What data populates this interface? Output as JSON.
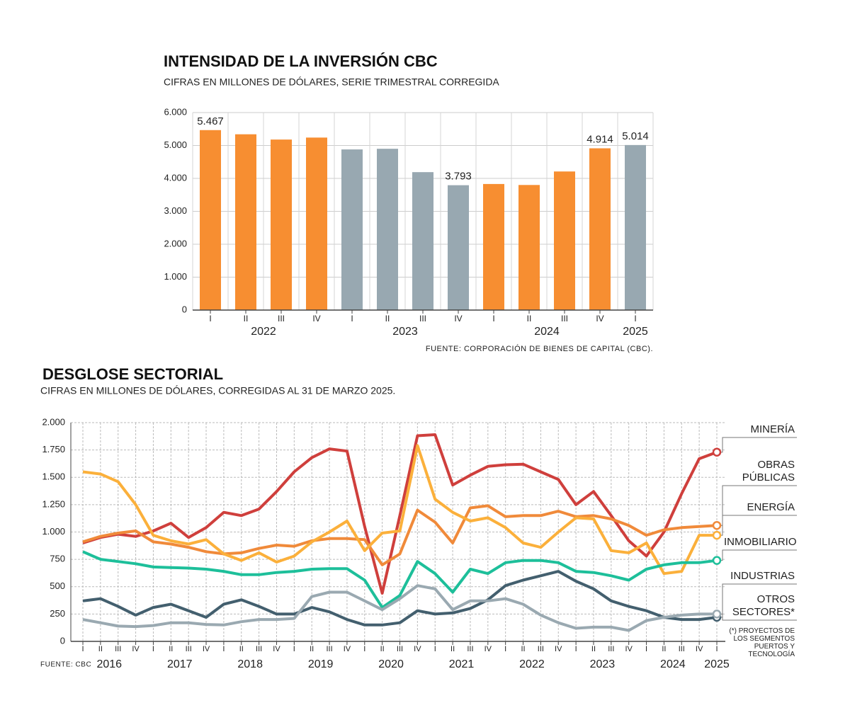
{
  "chart_data": [
    {
      "type": "bar",
      "title": "INTENSIDAD DE LA INVERSIÓN CBC",
      "subtitle": "CIFRAS EN MILLONES DE DÓLARES,  SERIE TRIMESTRAL CORREGIDA",
      "source": "FUENTE: CORPORACIÓN DE BIENES DE CAPITAL (CBC).",
      "categories": [
        "I",
        "II",
        "III",
        "IV",
        "I",
        "II",
        "III",
        "IV",
        "I",
        "II",
        "III",
        "IV",
        "I"
      ],
      "groups": [
        {
          "label": "2022",
          "span": 4
        },
        {
          "label": "2023",
          "span": 4
        },
        {
          "label": "2024",
          "span": 4
        },
        {
          "label": "2025",
          "span": 1
        }
      ],
      "values": [
        5467,
        5340,
        5180,
        5240,
        4880,
        4900,
        4190,
        3793,
        3830,
        3800,
        4210,
        4914,
        5014
      ],
      "value_labels": [
        "5.467",
        null,
        null,
        null,
        null,
        null,
        null,
        "3.793",
        null,
        null,
        null,
        "4.914",
        "5.014"
      ],
      "colors": [
        "#f78e31",
        "#f78e31",
        "#f78e31",
        "#f78e31",
        "#98a8b1",
        "#98a8b1",
        "#98a8b1",
        "#98a8b1",
        "#f78e31",
        "#f78e31",
        "#f78e31",
        "#f78e31",
        "#98a8b1"
      ],
      "ylim": [
        0,
        6000
      ],
      "yticks": [
        0,
        {
          "value": 1000,
          "label": "1.000"
        },
        {
          "value": 2000,
          "label": "2.000"
        },
        {
          "value": 3000,
          "label": "3.000"
        },
        {
          "value": 4000,
          "label": "4.000"
        },
        {
          "value": 5000,
          "label": "5.000"
        },
        {
          "value": 6000,
          "label": "6.000"
        }
      ],
      "grid": true
    },
    {
      "type": "line",
      "title": "DESGLOSE SECTORIAL",
      "subtitle": "CIFRAS EN MILLONES DE DÓLARES, CORREGIDAS AL 31 DE MARZO 2025.",
      "source": "FUENTE: CBC",
      "footnote": "(*)  PROYECTOS DE LOS SEGMENTOS PUERTOS Y TECNOLOGÍA",
      "categories": [
        "I",
        "II",
        "III",
        "IV",
        "I",
        "II",
        "III",
        "IV",
        "I",
        "II",
        "III",
        "IV",
        "I",
        "II",
        "III",
        "IV",
        "I",
        "II",
        "III",
        "IV",
        "I",
        "II",
        "III",
        "IV",
        "I",
        "II",
        "III",
        "IV",
        "I",
        "II",
        "III",
        "IV",
        "I",
        "II",
        "III",
        "IV",
        "I"
      ],
      "groups": [
        {
          "label": "2016",
          "span": 4
        },
        {
          "label": "2017",
          "span": 4
        },
        {
          "label": "2018",
          "span": 4
        },
        {
          "label": "2019",
          "span": 4
        },
        {
          "label": "2020",
          "span": 4
        },
        {
          "label": "2021",
          "span": 4
        },
        {
          "label": "2022",
          "span": 4
        },
        {
          "label": "2023",
          "span": 4
        },
        {
          "label": "2024",
          "span": 4
        },
        {
          "label": "2025",
          "span": 1
        }
      ],
      "series": [
        {
          "name": "MINERÍA",
          "color": "#cf3f3c",
          "values": [
            900,
            950,
            980,
            960,
            1010,
            1080,
            950,
            1040,
            1180,
            1150,
            1210,
            1370,
            1550,
            1680,
            1760,
            1740,
            1050,
            440,
            1150,
            1880,
            1890,
            1430,
            1520,
            1600,
            1615,
            1620,
            1550,
            1480,
            1250,
            1370,
            1150,
            920,
            780,
            1000,
            1350,
            1670,
            1730
          ]
        },
        {
          "name": "OBRAS PÚBLICAS",
          "color": "#f08a3a",
          "values": [
            910,
            960,
            990,
            1010,
            910,
            890,
            860,
            820,
            800,
            810,
            850,
            880,
            870,
            920,
            940,
            940,
            930,
            700,
            800,
            1200,
            1090,
            900,
            1220,
            1240,
            1140,
            1150,
            1150,
            1190,
            1140,
            1150,
            1120,
            1060,
            970,
            1020,
            1040,
            1050,
            1060
          ]
        },
        {
          "name": "ENERGÍA",
          "color": "#fbb03b",
          "values": [
            1550,
            1530,
            1460,
            1250,
            970,
            920,
            890,
            930,
            800,
            740,
            810,
            725,
            780,
            910,
            1000,
            1100,
            830,
            990,
            1010,
            1790,
            1300,
            1180,
            1100,
            1130,
            1040,
            900,
            860,
            1000,
            1130,
            1120,
            830,
            810,
            900,
            620,
            640,
            970,
            970
          ]
        },
        {
          "name": "INMOBILIARIO",
          "color": "#1dbf9a",
          "values": [
            820,
            750,
            730,
            710,
            680,
            675,
            670,
            660,
            640,
            610,
            610,
            630,
            640,
            660,
            665,
            665,
            560,
            310,
            420,
            730,
            620,
            450,
            660,
            620,
            720,
            740,
            740,
            720,
            640,
            630,
            600,
            560,
            660,
            700,
            720,
            720,
            740
          ]
        },
        {
          "name": "INDUSTRIAS",
          "color": "#435f6e",
          "values": [
            370,
            390,
            320,
            240,
            310,
            340,
            280,
            220,
            340,
            380,
            320,
            250,
            250,
            310,
            270,
            200,
            150,
            150,
            170,
            280,
            250,
            260,
            300,
            380,
            510,
            560,
            600,
            640,
            550,
            480,
            370,
            320,
            280,
            220,
            200,
            200,
            220
          ]
        },
        {
          "name": "OTROS SECTORES*",
          "color": "#9aa9b1",
          "values": [
            200,
            170,
            140,
            135,
            145,
            170,
            170,
            155,
            150,
            180,
            200,
            200,
            210,
            410,
            450,
            450,
            370,
            290,
            390,
            510,
            480,
            290,
            370,
            370,
            390,
            340,
            240,
            170,
            120,
            130,
            130,
            100,
            190,
            220,
            240,
            250,
            250
          ]
        }
      ],
      "ylim": [
        0,
        2000
      ],
      "yticks": [
        0,
        250,
        500,
        750,
        {
          "value": 1000,
          "label": "1.000"
        },
        {
          "value": 1250,
          "label": "1.250"
        },
        {
          "value": 1500,
          "label": "1.500"
        },
        {
          "value": 1750,
          "label": "1.750"
        },
        {
          "value": 2000,
          "label": "2.000"
        }
      ],
      "grid": true
    }
  ]
}
